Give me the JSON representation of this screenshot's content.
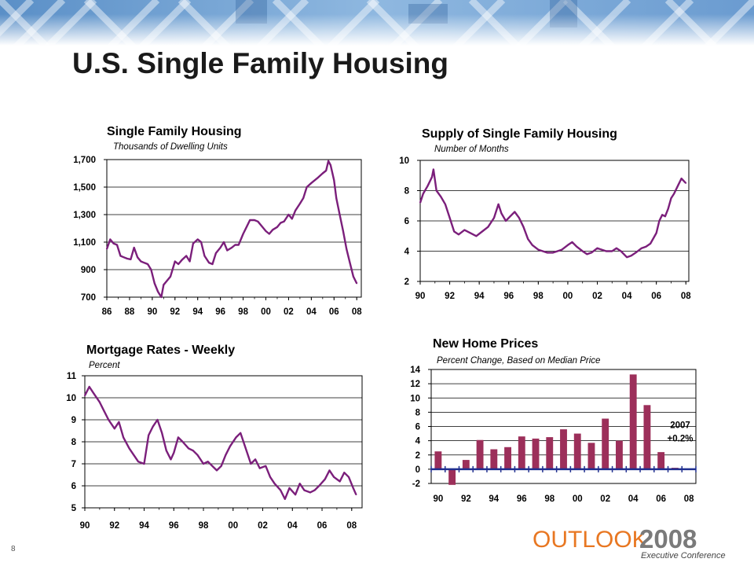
{
  "slide": {
    "title": "U.S. Single Family Housing",
    "page_number": "8",
    "logo": {
      "word": "OUTLOOK",
      "year": "2008",
      "sub": "Executive Conference"
    }
  },
  "chart_data": [
    {
      "type": "line",
      "title": "Single Family Housing",
      "subtitle": "Thousands of Dwelling Units",
      "xlabel": "",
      "ylabel": "",
      "x_ticks": [
        "86",
        "88",
        "90",
        "92",
        "94",
        "96",
        "98",
        "00",
        "02",
        "04",
        "06",
        "08"
      ],
      "y_ticks": [
        "1,700",
        "1,500",
        "1,300",
        "1,100",
        "900",
        "700"
      ],
      "ylim": [
        700,
        1700
      ],
      "xlim": [
        1986,
        2008.4
      ],
      "grid": "horizontal",
      "color": "#7b1f7b",
      "series": [
        {
          "x": [
            1986,
            1986.3,
            1986.6,
            1986.9,
            1987.2,
            1987.5,
            1987.8,
            1988.1,
            1988.4,
            1988.7,
            1989,
            1989.3,
            1989.6,
            1989.9,
            1990.2,
            1990.5,
            1990.8,
            1991.0,
            1991.3,
            1991.6,
            1992,
            1992.3,
            1992.6,
            1993,
            1993.3,
            1993.6,
            1994,
            1994.3,
            1994.6,
            1995,
            1995.3,
            1995.6,
            1996,
            1996.3,
            1996.6,
            1997,
            1997.3,
            1997.6,
            1998,
            1998.3,
            1998.6,
            1999,
            1999.3,
            1999.6,
            2000,
            2000.3,
            2000.6,
            2001,
            2001.3,
            2001.6,
            2002,
            2002.3,
            2002.6,
            2003,
            2003.3,
            2003.6,
            2004,
            2004.3,
            2004.6,
            2005,
            2005.3,
            2005.5,
            2005.7,
            2006,
            2006.2,
            2006.5,
            2006.8,
            2007.1,
            2007.4,
            2007.7,
            2008
          ],
          "y": [
            1050,
            1120,
            1090,
            1080,
            1000,
            990,
            980,
            975,
            1060,
            990,
            960,
            950,
            940,
            900,
            800,
            740,
            700,
            790,
            820,
            850,
            960,
            940,
            970,
            1000,
            960,
            1090,
            1120,
            1100,
            1000,
            950,
            940,
            1020,
            1060,
            1100,
            1040,
            1060,
            1080,
            1080,
            1160,
            1210,
            1260,
            1260,
            1250,
            1220,
            1180,
            1160,
            1190,
            1210,
            1240,
            1250,
            1300,
            1270,
            1330,
            1380,
            1420,
            1500,
            1530,
            1550,
            1570,
            1600,
            1620,
            1690,
            1660,
            1550,
            1420,
            1300,
            1180,
            1050,
            950,
            850,
            800
          ]
        }
      ]
    },
    {
      "type": "line",
      "title": "Supply of Single Family Housing",
      "subtitle": "Number of Months",
      "xlabel": "",
      "ylabel": "",
      "x_ticks": [
        "90",
        "92",
        "94",
        "96",
        "98",
        "00",
        "02",
        "04",
        "06",
        "08"
      ],
      "y_ticks": [
        "10",
        "8",
        "6",
        "4",
        "2"
      ],
      "ylim": [
        2,
        10
      ],
      "xlim": [
        1990,
        2008.2
      ],
      "grid": "horizontal",
      "color": "#7b1f7b",
      "series": [
        {
          "x": [
            1990,
            1990.2,
            1990.5,
            1990.8,
            1990.9,
            1991.1,
            1991.4,
            1991.7,
            1992,
            1992.3,
            1992.6,
            1993,
            1993.4,
            1993.8,
            1994.2,
            1994.6,
            1995,
            1995.3,
            1995.5,
            1995.8,
            1996.1,
            1996.4,
            1996.7,
            1997,
            1997.3,
            1997.6,
            1998,
            1998.3,
            1998.6,
            1999,
            1999.3,
            1999.6,
            2000,
            2000.3,
            2000.6,
            2001,
            2001.3,
            2001.6,
            2002,
            2002.3,
            2002.6,
            2003,
            2003.3,
            2003.6,
            2004,
            2004.3,
            2004.6,
            2005,
            2005.3,
            2005.6,
            2006,
            2006.2,
            2006.4,
            2006.6,
            2006.8,
            2007,
            2007.2,
            2007.5,
            2007.7,
            2008
          ],
          "y": [
            7.2,
            7.8,
            8.3,
            8.9,
            9.4,
            8.0,
            7.6,
            7.1,
            6.2,
            5.3,
            5.1,
            5.4,
            5.2,
            5.0,
            5.3,
            5.6,
            6.2,
            7.1,
            6.5,
            6.0,
            6.3,
            6.6,
            6.2,
            5.6,
            4.8,
            4.4,
            4.1,
            4.0,
            3.9,
            3.9,
            4.0,
            4.1,
            4.4,
            4.6,
            4.3,
            4.0,
            3.8,
            3.9,
            4.2,
            4.1,
            4.0,
            4.0,
            4.2,
            4.0,
            3.6,
            3.7,
            3.9,
            4.2,
            4.3,
            4.5,
            5.2,
            6.0,
            6.4,
            6.3,
            6.8,
            7.5,
            7.8,
            8.4,
            8.8,
            8.5
          ]
        }
      ]
    },
    {
      "type": "line",
      "title": "Mortgage Rates - Weekly",
      "subtitle": "Percent",
      "xlabel": "",
      "ylabel": "",
      "x_ticks": [
        "90",
        "92",
        "94",
        "96",
        "98",
        "00",
        "02",
        "04",
        "06",
        "08"
      ],
      "y_ticks": [
        "11",
        "10",
        "9",
        "8",
        "7",
        "6",
        "5"
      ],
      "ylim": [
        5,
        11
      ],
      "xlim": [
        1990,
        2008.7
      ],
      "grid": "horizontal",
      "color": "#7b1f7b",
      "series": [
        {
          "x": [
            1990,
            1990.3,
            1990.6,
            1991,
            1991.3,
            1991.6,
            1992,
            1992.3,
            1992.6,
            1993,
            1993.3,
            1993.6,
            1994,
            1994.3,
            1994.6,
            1994.9,
            1995.2,
            1995.5,
            1995.8,
            1996,
            1996.3,
            1996.6,
            1997,
            1997.3,
            1997.6,
            1998,
            1998.3,
            1998.6,
            1998.9,
            1999.2,
            1999.5,
            1999.8,
            2000.2,
            2000.5,
            2000.8,
            2001.2,
            2001.5,
            2001.8,
            2002.2,
            2002.5,
            2002.8,
            2003.2,
            2003.5,
            2003.8,
            2004.2,
            2004.5,
            2004.8,
            2005.2,
            2005.5,
            2005.8,
            2006.2,
            2006.5,
            2006.8,
            2007.2,
            2007.5,
            2007.8,
            2008.1,
            2008.3
          ],
          "y": [
            10.1,
            10.5,
            10.2,
            9.8,
            9.4,
            9.0,
            8.6,
            8.9,
            8.2,
            7.7,
            7.4,
            7.1,
            7.0,
            8.3,
            8.7,
            9.0,
            8.4,
            7.6,
            7.2,
            7.5,
            8.2,
            8.0,
            7.7,
            7.6,
            7.4,
            7.0,
            7.1,
            6.9,
            6.7,
            6.9,
            7.4,
            7.8,
            8.2,
            8.4,
            7.8,
            7.0,
            7.2,
            6.8,
            6.9,
            6.4,
            6.1,
            5.8,
            5.4,
            5.9,
            5.6,
            6.1,
            5.8,
            5.7,
            5.8,
            6.0,
            6.3,
            6.7,
            6.4,
            6.2,
            6.6,
            6.4,
            5.9,
            5.6
          ]
        }
      ]
    },
    {
      "type": "bar",
      "title": "New Home Prices",
      "subtitle": "Percent Change, Based on Median Price",
      "xlabel": "",
      "ylabel": "",
      "x_ticks": [
        "90",
        "92",
        "94",
        "96",
        "98",
        "00",
        "02",
        "04",
        "06",
        "08"
      ],
      "y_ticks": [
        "14",
        "12",
        "10",
        "8",
        "6",
        "4",
        "2",
        "0",
        "-2"
      ],
      "ylim": [
        -2,
        14
      ],
      "grid": "horizontal",
      "color": "#9c2f5a",
      "categories": [
        "1990",
        "1991",
        "1992",
        "1993",
        "1994",
        "1995",
        "1996",
        "1997",
        "1998",
        "1999",
        "2000",
        "2001",
        "2002",
        "2003",
        "2004",
        "2005",
        "2006",
        "2007"
      ],
      "values": [
        2.5,
        -2.2,
        1.3,
        4.1,
        2.8,
        3.1,
        4.6,
        4.3,
        4.5,
        5.6,
        5.0,
        3.7,
        7.1,
        4.0,
        13.3,
        9.0,
        2.4,
        0.2
      ],
      "annotation": {
        "year": "2007",
        "value": "+0.2%"
      }
    }
  ]
}
